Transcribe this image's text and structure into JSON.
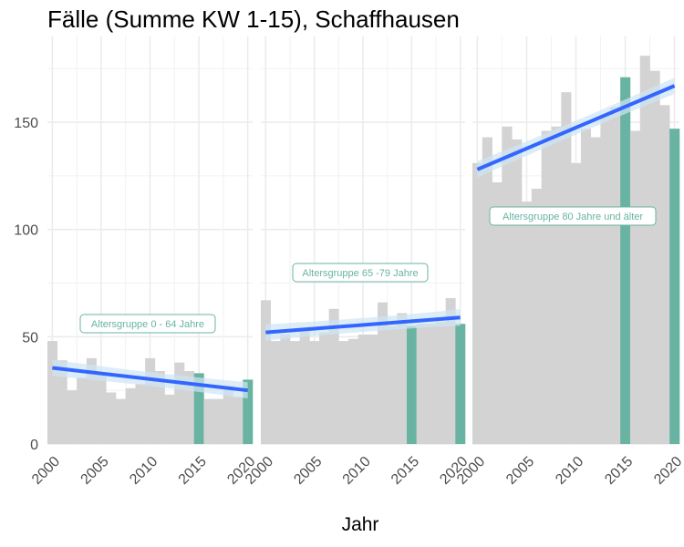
{
  "chart_data": {
    "type": "bar",
    "title": "Fälle (Summe KW 1-15), Schaffhausen",
    "xlabel": "Jahr",
    "ylabel": "",
    "ylim": [
      0,
      190
    ],
    "xlim": [
      1999.5,
      2020.5
    ],
    "x_ticks": [
      "2000",
      "2005",
      "2010",
      "2015",
      "2020"
    ],
    "y_ticks": [
      "0",
      "50",
      "100",
      "150"
    ],
    "grid": true,
    "colors": {
      "bar_normal": "#d3d3d3",
      "bar_highlight": "#69b3a2",
      "trend_line": "#3366ff",
      "ribbon": "#cfe6f4",
      "label_border": "#69b3a2",
      "label_text": "#69b3a2"
    },
    "facets": [
      {
        "label": "Altersgruppe 0 - 64 Jahre",
        "years": [
          2000,
          2001,
          2002,
          2003,
          2004,
          2005,
          2006,
          2007,
          2008,
          2009,
          2010,
          2011,
          2012,
          2013,
          2014,
          2015,
          2016,
          2017,
          2018,
          2019,
          2020
        ],
        "values": [
          48,
          39,
          25,
          31,
          40,
          33,
          24,
          21,
          26,
          28,
          40,
          34,
          23,
          38,
          34,
          33,
          21,
          21,
          27,
          22,
          30
        ],
        "highlight_years": [
          2015,
          2020
        ],
        "trend": {
          "start": [
            2000,
            35.5
          ],
          "end": [
            2020,
            25
          ]
        }
      },
      {
        "label": "Altersgruppe 65 -79 Jahre",
        "years": [
          2000,
          2001,
          2002,
          2003,
          2004,
          2005,
          2006,
          2007,
          2008,
          2009,
          2010,
          2011,
          2012,
          2013,
          2014,
          2015,
          2016,
          2017,
          2018,
          2019,
          2020
        ],
        "values": [
          67,
          48,
          51,
          48,
          53,
          48,
          52,
          63,
          48,
          49,
          51,
          51,
          66,
          55,
          61,
          55,
          56,
          56,
          57,
          68,
          56
        ],
        "highlight_years": [
          2015,
          2020
        ],
        "trend": {
          "start": [
            2000,
            52
          ],
          "end": [
            2020,
            59
          ]
        }
      },
      {
        "label": "Altersgruppe 80 Jahre und älter",
        "years": [
          2000,
          2001,
          2002,
          2003,
          2004,
          2005,
          2006,
          2007,
          2008,
          2009,
          2010,
          2011,
          2012,
          2013,
          2014,
          2015,
          2016,
          2017,
          2018,
          2019,
          2020
        ],
        "values": [
          131,
          143,
          122,
          148,
          142,
          113,
          119,
          146,
          148,
          164,
          131,
          147,
          143,
          153,
          157,
          171,
          146,
          181,
          174,
          158,
          147
        ],
        "highlight_years": [
          2015,
          2020
        ],
        "trend": {
          "start": [
            2000,
            128
          ],
          "end": [
            2020,
            167
          ]
        }
      }
    ]
  }
}
